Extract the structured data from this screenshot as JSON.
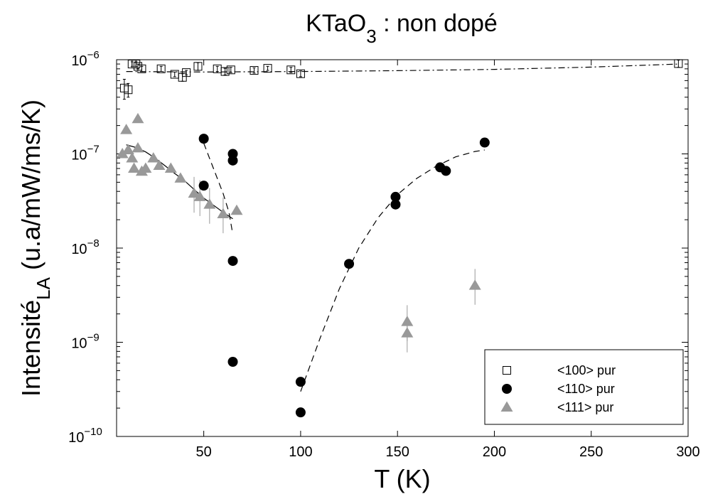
{
  "chart_data": {
    "type": "scatter",
    "title_main": "KTaO",
    "title_sub": "3",
    "title_rest": " : non dopé",
    "xlabel": "T (K)",
    "ylabel_main": "Intensité",
    "ylabel_sub": "LA",
    "ylabel_rest": " (u.a/mW/ms/K)",
    "xlim": [
      5,
      300
    ],
    "ylim": [
      1e-10,
      1e-06
    ],
    "yscale": "log",
    "x_ticks": [
      {
        "value": 50,
        "label": "50"
      },
      {
        "value": 100,
        "label": "100"
      },
      {
        "value": 150,
        "label": "150"
      },
      {
        "value": 200,
        "label": "200"
      },
      {
        "value": 250,
        "label": "250"
      },
      {
        "value": 300,
        "label": "300"
      }
    ],
    "y_ticks": [
      {
        "value": 1e-10,
        "base": "10",
        "exp": "−10"
      },
      {
        "value": 1e-09,
        "base": "10",
        "exp": "−9"
      },
      {
        "value": 1e-08,
        "base": "10",
        "exp": "−8"
      },
      {
        "value": 1e-07,
        "base": "10",
        "exp": "−7"
      },
      {
        "value": 1e-06,
        "base": "10",
        "exp": "−6"
      }
    ],
    "grid": false,
    "legend_position": "bottom-right",
    "series": [
      {
        "name": "<100> pur",
        "marker": "square-open",
        "color": "#000000",
        "points": [
          {
            "x": 9,
            "y": 5e-07,
            "err": 1.2e-07
          },
          {
            "x": 11,
            "y": 4.8e-07,
            "err": 8e-08
          },
          {
            "x": 13,
            "y": 9e-07,
            "err": 5e-08
          },
          {
            "x": 15,
            "y": 9e-07,
            "err": 5e-08
          },
          {
            "x": 16,
            "y": 8.5e-07,
            "err": 5e-08
          },
          {
            "x": 18,
            "y": 8e-07,
            "err": 5e-08
          },
          {
            "x": 28,
            "y": 8e-07,
            "err": 5e-08
          },
          {
            "x": 35,
            "y": 7e-07,
            "err": 4e-08
          },
          {
            "x": 39,
            "y": 6.5e-07,
            "err": 6e-08
          },
          {
            "x": 41,
            "y": 7.3e-07,
            "err": 4e-08
          },
          {
            "x": 47,
            "y": 8.5e-07,
            "err": 8e-08
          },
          {
            "x": 57,
            "y": 8e-07,
            "err": 5e-08
          },
          {
            "x": 61,
            "y": 7.5e-07,
            "err": 6e-08
          },
          {
            "x": 64,
            "y": 7.8e-07,
            "err": 5e-08
          },
          {
            "x": 76,
            "y": 7.7e-07,
            "err": 5e-08
          },
          {
            "x": 83,
            "y": 8.1e-07,
            "err": 4e-08
          },
          {
            "x": 95,
            "y": 7.8e-07,
            "err": 5e-08
          },
          {
            "x": 100,
            "y": 7.1e-07,
            "err": 5e-08
          },
          {
            "x": 295,
            "y": 9.1e-07,
            "err": 8e-08
          }
        ]
      },
      {
        "name": "<110> pur",
        "marker": "circle-filled",
        "color": "#000000",
        "points": [
          {
            "x": 50,
            "y": 1.45e-07
          },
          {
            "x": 50,
            "y": 4.6e-08
          },
          {
            "x": 65,
            "y": 1e-07
          },
          {
            "x": 65,
            "y": 8.5e-08
          },
          {
            "x": 65,
            "y": 7.3e-09
          },
          {
            "x": 65,
            "y": 6.2e-10
          },
          {
            "x": 100,
            "y": 3.8e-10
          },
          {
            "x": 100,
            "y": 1.8e-10
          },
          {
            "x": 125,
            "y": 6.8e-09
          },
          {
            "x": 149,
            "y": 3.5e-08
          },
          {
            "x": 149,
            "y": 2.9e-08
          },
          {
            "x": 172,
            "y": 7.2e-08
          },
          {
            "x": 175,
            "y": 6.6e-08
          },
          {
            "x": 195,
            "y": 1.32e-07
          }
        ]
      },
      {
        "name": "<111> pur",
        "marker": "triangle-filled",
        "color": "#999999",
        "points": [
          {
            "x": 8,
            "y": 1e-07
          },
          {
            "x": 10,
            "y": 1.8e-07
          },
          {
            "x": 11,
            "y": 1.1e-07
          },
          {
            "x": 13,
            "y": 9e-08
          },
          {
            "x": 14,
            "y": 7e-08
          },
          {
            "x": 16,
            "y": 2.35e-07
          },
          {
            "x": 16,
            "y": 1.15e-07
          },
          {
            "x": 18,
            "y": 6.5e-08
          },
          {
            "x": 20,
            "y": 7e-08
          },
          {
            "x": 24,
            "y": 9e-08
          },
          {
            "x": 27,
            "y": 7.5e-08
          },
          {
            "x": 33,
            "y": 7e-08
          },
          {
            "x": 38,
            "y": 5.5e-08
          },
          {
            "x": 45,
            "y": 3.8e-08
          },
          {
            "x": 48,
            "y": 3.5e-08
          },
          {
            "x": 53,
            "y": 2.9e-08
          },
          {
            "x": 60,
            "y": 2.3e-08
          },
          {
            "x": 67,
            "y": 2.5e-08
          },
          {
            "x": 155,
            "y": 1.65e-09
          },
          {
            "x": 155,
            "y": 1.25e-09
          },
          {
            "x": 190,
            "y": 4e-09
          }
        ]
      }
    ],
    "fit_lines": [
      {
        "style": "dash-dot",
        "points": [
          [
            10,
            7.5e-07
          ],
          [
            50,
            7.4e-07
          ],
          [
            100,
            7.5e-07
          ],
          [
            150,
            7.65e-07
          ],
          [
            200,
            7.9e-07
          ],
          [
            250,
            8.35e-07
          ],
          [
            295,
            9e-07
          ]
        ]
      },
      {
        "style": "solid",
        "points": [
          [
            10,
            1.25e-07
          ],
          [
            15,
            1.17e-07
          ],
          [
            20,
            1.05e-07
          ],
          [
            25,
            9e-08
          ],
          [
            30,
            7.5e-08
          ],
          [
            35,
            6.2e-08
          ],
          [
            40,
            5.2e-08
          ],
          [
            45,
            4.2e-08
          ],
          [
            50,
            3.4e-08
          ],
          [
            55,
            2.85e-08
          ],
          [
            60,
            2.4e-08
          ],
          [
            65,
            2.05e-08
          ]
        ]
      },
      {
        "style": "dashed",
        "points": [
          [
            50,
            1.3e-07
          ],
          [
            55,
            7e-08
          ],
          [
            60,
            3.8e-08
          ],
          [
            63,
            2.4e-08
          ],
          [
            65,
            1.4e-08
          ]
        ]
      },
      {
        "style": "dashed",
        "points": [
          [
            100,
            3e-10
          ],
          [
            110,
            1.1e-09
          ],
          [
            120,
            3.7e-09
          ],
          [
            130,
            1e-08
          ],
          [
            140,
            2.1e-08
          ],
          [
            150,
            3.7e-08
          ],
          [
            160,
            5.5e-08
          ],
          [
            170,
            7.4e-08
          ],
          [
            180,
            9.3e-08
          ],
          [
            190,
            1.06e-07
          ],
          [
            195,
            1.1e-07
          ]
        ]
      }
    ]
  }
}
